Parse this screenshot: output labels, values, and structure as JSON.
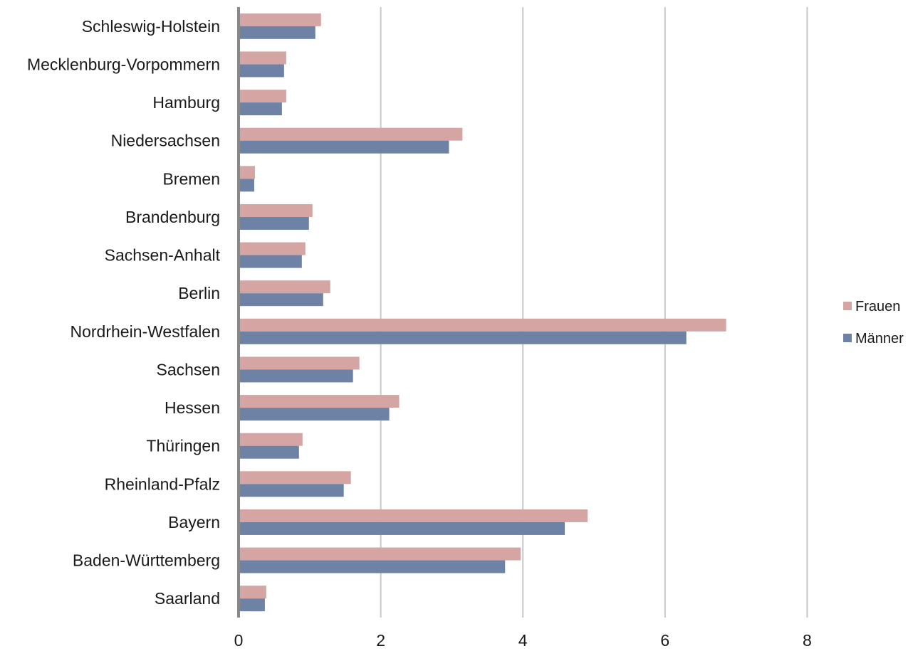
{
  "chart_data": {
    "type": "bar",
    "orientation": "horizontal",
    "title": "",
    "xlabel": "",
    "ylabel": "",
    "categories": [
      "Schleswig-Holstein",
      "Mecklenburg-Vorpommern",
      "Hamburg",
      "Niedersachsen",
      "Bremen",
      "Brandenburg",
      "Sachsen-Anhalt",
      "Berlin",
      "Nordrhein-Westfalen",
      "Sachsen",
      "Hessen",
      "Thüringen",
      "Rheinland-Pfalz",
      "Bayern",
      "Baden-Württemberg",
      "Saarland"
    ],
    "series": [
      {
        "name": "Frauen",
        "color": "#d4a5a3",
        "values": [
          1.16,
          0.67,
          0.67,
          3.15,
          0.23,
          1.04,
          0.94,
          1.29,
          6.86,
          1.7,
          2.26,
          0.9,
          1.58,
          4.91,
          3.97,
          0.39
        ]
      },
      {
        "name": "Männer",
        "color": "#6e82a6",
        "values": [
          1.08,
          0.64,
          0.61,
          2.96,
          0.22,
          0.99,
          0.89,
          1.19,
          6.3,
          1.61,
          2.12,
          0.85,
          1.48,
          4.59,
          3.75,
          0.37
        ]
      }
    ],
    "xticks": [
      "0",
      "2",
      "4",
      "6",
      "8"
    ],
    "xlim": [
      0,
      8
    ],
    "grid": true,
    "legend": {
      "position": "right",
      "entries": [
        "Frauen",
        "Männer"
      ]
    }
  }
}
